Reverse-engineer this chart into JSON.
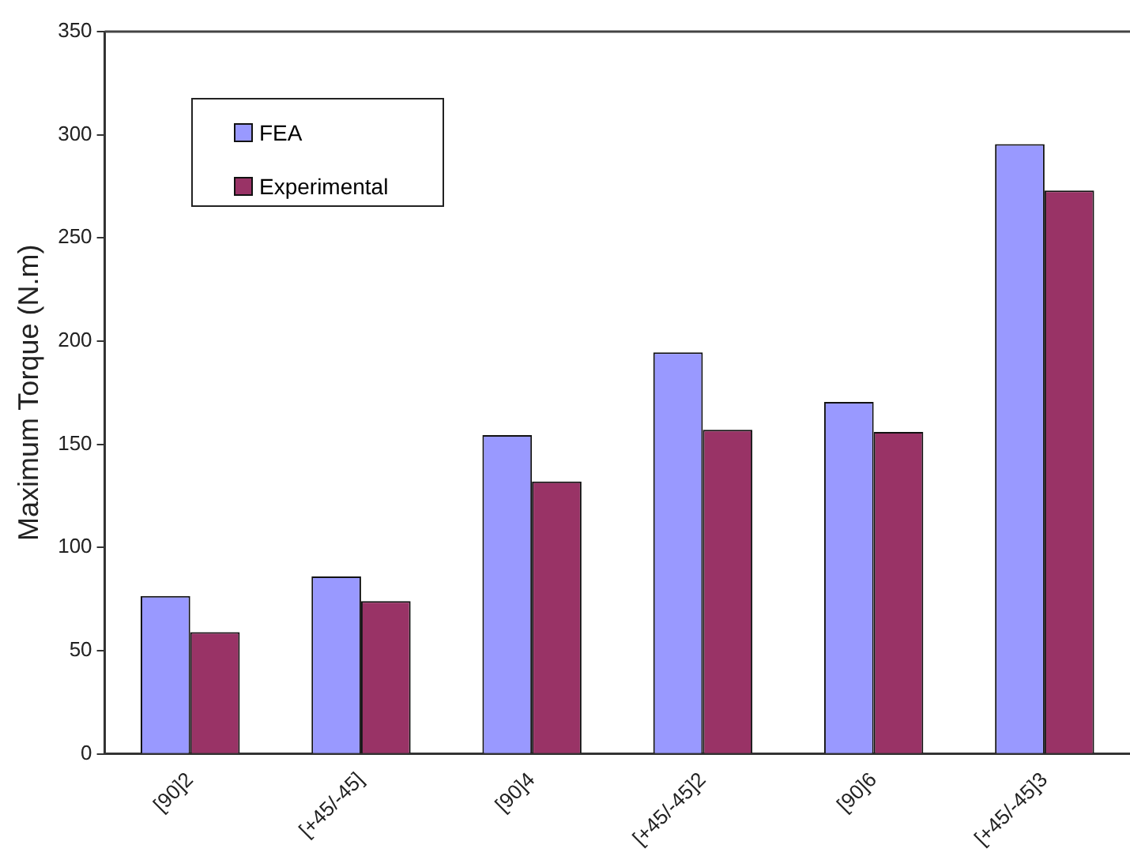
{
  "chart_data": {
    "type": "bar",
    "ylabel": "Maximum Torque (N.m)",
    "categories": [
      "[90]2",
      "[+45/-45]",
      "[90]4",
      "[+45/-45]2",
      "[90]6",
      "[+45/-45]3"
    ],
    "series": [
      {
        "name": "FEA",
        "color": "#9999ff",
        "values": [
          76.5,
          86,
          154.5,
          194.5,
          170.5,
          295.5
        ]
      },
      {
        "name": "Experimental",
        "color": "#993366",
        "values": [
          59,
          74,
          132,
          157,
          156,
          273
        ]
      }
    ],
    "ylim": [
      0,
      350
    ],
    "yticks": [
      0,
      50,
      100,
      150,
      200,
      250,
      300,
      350
    ],
    "grid": false,
    "legend": "top left"
  }
}
